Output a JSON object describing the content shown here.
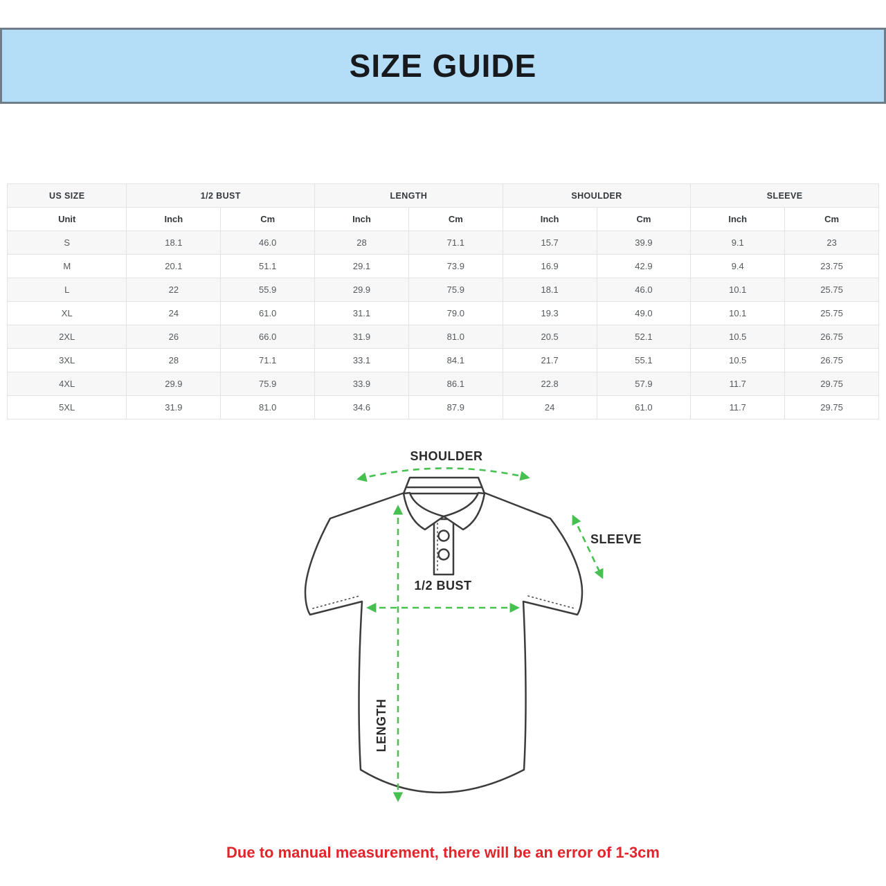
{
  "banner": {
    "title": "SIZE GUIDE",
    "bg_color": "#b4ddf8",
    "border_color": "#6e7d87"
  },
  "table": {
    "groups": [
      {
        "label": "US SIZE",
        "span": 1
      },
      {
        "label": "1/2 BUST",
        "span": 2
      },
      {
        "label": "LENGTH",
        "span": 2
      },
      {
        "label": "SHOULDER",
        "span": 2
      },
      {
        "label": "SLEEVE",
        "span": 2
      }
    ],
    "unit_row": [
      "Unit",
      "Inch",
      "Cm",
      "Inch",
      "Cm",
      "Inch",
      "Cm",
      "Inch",
      "Cm"
    ],
    "rows": [
      [
        "S",
        "18.1",
        "46.0",
        "28",
        "71.1",
        "15.7",
        "39.9",
        "9.1",
        "23"
      ],
      [
        "M",
        "20.1",
        "51.1",
        "29.1",
        "73.9",
        "16.9",
        "42.9",
        "9.4",
        "23.75"
      ],
      [
        "L",
        "22",
        "55.9",
        "29.9",
        "75.9",
        "18.1",
        "46.0",
        "10.1",
        "25.75"
      ],
      [
        "XL",
        "24",
        "61.0",
        "31.1",
        "79.0",
        "19.3",
        "49.0",
        "10.1",
        "25.75"
      ],
      [
        "2XL",
        "26",
        "66.0",
        "31.9",
        "81.0",
        "20.5",
        "52.1",
        "10.5",
        "26.75"
      ],
      [
        "3XL",
        "28",
        "71.1",
        "33.1",
        "84.1",
        "21.7",
        "55.1",
        "10.5",
        "26.75"
      ],
      [
        "4XL",
        "29.9",
        "75.9",
        "33.9",
        "86.1",
        "22.8",
        "57.9",
        "11.7",
        "29.75"
      ],
      [
        "5XL",
        "31.9",
        "81.0",
        "34.6",
        "87.9",
        "24",
        "61.0",
        "11.7",
        "29.75"
      ]
    ]
  },
  "diagram": {
    "labels": {
      "shoulder": "SHOULDER",
      "sleeve": "SLEEVE",
      "bust": "1/2 BUST",
      "length": "LENGTH"
    },
    "arrow_color": "#46c150",
    "outline_color": "#3c3c3c"
  },
  "note": {
    "text": "Due to manual measurement, there will be an error of 1-3cm",
    "color": "#e2242b"
  }
}
